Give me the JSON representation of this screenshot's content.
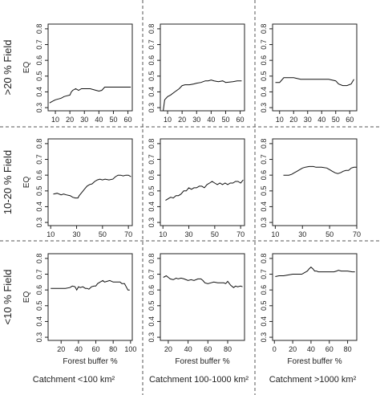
{
  "figure": {
    "row_labels": [
      ">20 % Field",
      "10-20 % Field",
      "<10 % Field"
    ],
    "col_labels": [
      "Catchment <100 km²",
      "Catchment 100-1000 km²",
      "Catchment >1000 km²"
    ]
  },
  "colors": {
    "line": "#111111",
    "frame": "#222222",
    "separator": "#555555"
  },
  "chart_data": [
    {
      "type": "line",
      "row": 0,
      "col": 0,
      "ylabel": "EQ",
      "xlabel": "",
      "xlim": [
        5,
        63
      ],
      "xticks": [
        10,
        20,
        30,
        40,
        50,
        60
      ],
      "ylim": [
        0.28,
        0.83
      ],
      "yticks": [
        0.3,
        0.4,
        0.5,
        0.6,
        0.7,
        0.8
      ],
      "x": [
        6,
        8,
        10,
        12,
        14,
        16,
        18,
        20,
        21,
        22,
        24,
        26,
        28,
        30,
        32,
        34,
        36,
        38,
        40,
        42,
        44,
        46,
        50,
        55,
        60,
        62
      ],
      "y": [
        0.33,
        0.34,
        0.35,
        0.355,
        0.36,
        0.37,
        0.375,
        0.38,
        0.4,
        0.41,
        0.42,
        0.41,
        0.42,
        0.42,
        0.42,
        0.42,
        0.415,
        0.41,
        0.405,
        0.41,
        0.43,
        0.43,
        0.43,
        0.43,
        0.43,
        0.43
      ]
    },
    {
      "type": "line",
      "row": 0,
      "col": 1,
      "ylabel": "",
      "xlabel": "",
      "xlim": [
        5,
        63
      ],
      "xticks": [
        10,
        20,
        30,
        40,
        50,
        60
      ],
      "ylim": [
        0.28,
        0.83
      ],
      "yticks": [
        0.3,
        0.4,
        0.5,
        0.6,
        0.7,
        0.8
      ],
      "x": [
        7,
        8,
        10,
        12,
        15,
        18,
        20,
        22,
        25,
        28,
        30,
        33,
        36,
        38,
        40,
        42,
        45,
        48,
        50,
        55,
        58,
        61
      ],
      "y": [
        0.28,
        0.35,
        0.37,
        0.38,
        0.4,
        0.42,
        0.44,
        0.445,
        0.445,
        0.45,
        0.455,
        0.46,
        0.47,
        0.47,
        0.475,
        0.47,
        0.465,
        0.47,
        0.46,
        0.465,
        0.47,
        0.47
      ]
    },
    {
      "type": "line",
      "row": 0,
      "col": 2,
      "ylabel": "",
      "xlabel": "",
      "xlim": [
        5,
        65
      ],
      "xticks": [
        10,
        20,
        30,
        40,
        50,
        60
      ],
      "ylim": [
        0.28,
        0.83
      ],
      "yticks": [
        0.3,
        0.4,
        0.5,
        0.6,
        0.7,
        0.8
      ],
      "x": [
        7,
        10,
        13,
        16,
        20,
        25,
        30,
        35,
        40,
        45,
        50,
        52,
        55,
        58,
        61,
        63
      ],
      "y": [
        0.46,
        0.46,
        0.49,
        0.49,
        0.49,
        0.48,
        0.48,
        0.48,
        0.48,
        0.48,
        0.47,
        0.45,
        0.44,
        0.44,
        0.45,
        0.48
      ]
    },
    {
      "type": "line",
      "row": 1,
      "col": 0,
      "ylabel": "EQ",
      "xlabel": "",
      "xlim": [
        8,
        73
      ],
      "xticks": [
        10,
        30,
        50,
        70
      ],
      "ylim": [
        0.28,
        0.83
      ],
      "yticks": [
        0.3,
        0.4,
        0.5,
        0.6,
        0.7,
        0.8
      ],
      "x": [
        12,
        15,
        18,
        20,
        22,
        25,
        27,
        29,
        31,
        32,
        34,
        36,
        38,
        40,
        42,
        44,
        46,
        48,
        50,
        52,
        55,
        58,
        60,
        62,
        64,
        66,
        68,
        70,
        72
      ],
      "y": [
        0.48,
        0.485,
        0.475,
        0.48,
        0.475,
        0.47,
        0.46,
        0.455,
        0.455,
        0.47,
        0.49,
        0.51,
        0.53,
        0.54,
        0.545,
        0.56,
        0.57,
        0.575,
        0.57,
        0.575,
        0.57,
        0.575,
        0.59,
        0.6,
        0.6,
        0.595,
        0.6,
        0.6,
        0.59
      ]
    },
    {
      "type": "line",
      "row": 1,
      "col": 1,
      "ylabel": "",
      "xlabel": "",
      "xlim": [
        8,
        73
      ],
      "xticks": [
        10,
        30,
        50,
        70
      ],
      "ylim": [
        0.28,
        0.83
      ],
      "yticks": [
        0.3,
        0.4,
        0.5,
        0.6,
        0.7,
        0.8
      ],
      "x": [
        12,
        14,
        16,
        18,
        20,
        22,
        24,
        26,
        28,
        30,
        32,
        34,
        36,
        38,
        40,
        42,
        44,
        46,
        48,
        50,
        52,
        54,
        56,
        58,
        60,
        62,
        64,
        66,
        68,
        70,
        72
      ],
      "y": [
        0.44,
        0.45,
        0.46,
        0.455,
        0.47,
        0.47,
        0.48,
        0.5,
        0.5,
        0.52,
        0.51,
        0.52,
        0.52,
        0.53,
        0.53,
        0.52,
        0.54,
        0.55,
        0.56,
        0.55,
        0.54,
        0.55,
        0.54,
        0.55,
        0.54,
        0.55,
        0.55,
        0.56,
        0.56,
        0.55,
        0.57
      ]
    },
    {
      "type": "line",
      "row": 1,
      "col": 2,
      "ylabel": "",
      "xlabel": "",
      "xlim": [
        8,
        70
      ],
      "xticks": [
        10,
        30,
        50,
        70
      ],
      "ylim": [
        0.28,
        0.83
      ],
      "yticks": [
        0.3,
        0.4,
        0.5,
        0.6,
        0.7,
        0.8
      ],
      "x": [
        16,
        20,
        22,
        24,
        26,
        28,
        30,
        32,
        35,
        38,
        40,
        44,
        48,
        50,
        52,
        54,
        56,
        58,
        60,
        62,
        64,
        66,
        68,
        70
      ],
      "y": [
        0.6,
        0.6,
        0.605,
        0.615,
        0.625,
        0.635,
        0.645,
        0.65,
        0.655,
        0.655,
        0.65,
        0.65,
        0.645,
        0.635,
        0.625,
        0.615,
        0.61,
        0.615,
        0.625,
        0.63,
        0.63,
        0.645,
        0.65,
        0.65
      ]
    },
    {
      "type": "line",
      "row": 2,
      "col": 0,
      "ylabel": "EQ",
      "xlabel": "Forest buffer %",
      "xlim": [
        5,
        102
      ],
      "xticks": [
        20,
        40,
        60,
        80,
        100
      ],
      "ylim": [
        0.28,
        0.83
      ],
      "yticks": [
        0.3,
        0.4,
        0.5,
        0.6,
        0.7,
        0.8
      ],
      "x": [
        8,
        15,
        20,
        25,
        30,
        33,
        36,
        38,
        40,
        42,
        45,
        48,
        50,
        52,
        55,
        58,
        60,
        62,
        65,
        68,
        70,
        73,
        76,
        80,
        85,
        88,
        90,
        93,
        95,
        97,
        99
      ],
      "y": [
        0.61,
        0.61,
        0.61,
        0.61,
        0.615,
        0.625,
        0.62,
        0.6,
        0.62,
        0.615,
        0.62,
        0.61,
        0.61,
        0.605,
        0.62,
        0.625,
        0.625,
        0.64,
        0.65,
        0.66,
        0.65,
        0.655,
        0.66,
        0.65,
        0.65,
        0.65,
        0.64,
        0.64,
        0.62,
        0.6,
        0.6
      ]
    },
    {
      "type": "line",
      "row": 2,
      "col": 1,
      "ylabel": "",
      "xlabel": "Forest buffer %",
      "xlim": [
        12,
        97
      ],
      "xticks": [
        20,
        40,
        60,
        80
      ],
      "ylim": [
        0.28,
        0.83
      ],
      "yticks": [
        0.3,
        0.4,
        0.5,
        0.6,
        0.7,
        0.8
      ],
      "x": [
        15,
        18,
        20,
        22,
        25,
        28,
        30,
        33,
        36,
        38,
        40,
        43,
        46,
        50,
        53,
        55,
        57,
        60,
        63,
        66,
        70,
        73,
        76,
        78,
        80,
        83,
        86,
        88,
        90,
        93,
        95
      ],
      "y": [
        0.68,
        0.69,
        0.68,
        0.67,
        0.665,
        0.675,
        0.67,
        0.675,
        0.67,
        0.665,
        0.66,
        0.665,
        0.66,
        0.67,
        0.67,
        0.66,
        0.645,
        0.64,
        0.645,
        0.65,
        0.645,
        0.645,
        0.645,
        0.64,
        0.655,
        0.63,
        0.615,
        0.625,
        0.62,
        0.625,
        0.62
      ]
    },
    {
      "type": "line",
      "row": 2,
      "col": 2,
      "ylabel": "",
      "xlabel": "Forest buffer %",
      "xlim": [
        -2,
        90
      ],
      "xticks": [
        0,
        20,
        40,
        60,
        80
      ],
      "ylim": [
        0.28,
        0.83
      ],
      "yticks": [
        0.3,
        0.4,
        0.5,
        0.6,
        0.7,
        0.8
      ],
      "x": [
        1,
        5,
        10,
        15,
        20,
        25,
        30,
        33,
        36,
        38,
        40,
        42,
        44,
        46,
        48,
        50,
        55,
        60,
        65,
        68,
        70,
        73,
        76,
        80,
        85,
        88
      ],
      "y": [
        0.685,
        0.69,
        0.69,
        0.695,
        0.7,
        0.7,
        0.7,
        0.71,
        0.72,
        0.735,
        0.745,
        0.735,
        0.72,
        0.72,
        0.715,
        0.715,
        0.715,
        0.715,
        0.715,
        0.72,
        0.725,
        0.72,
        0.72,
        0.72,
        0.715,
        0.715
      ]
    }
  ]
}
